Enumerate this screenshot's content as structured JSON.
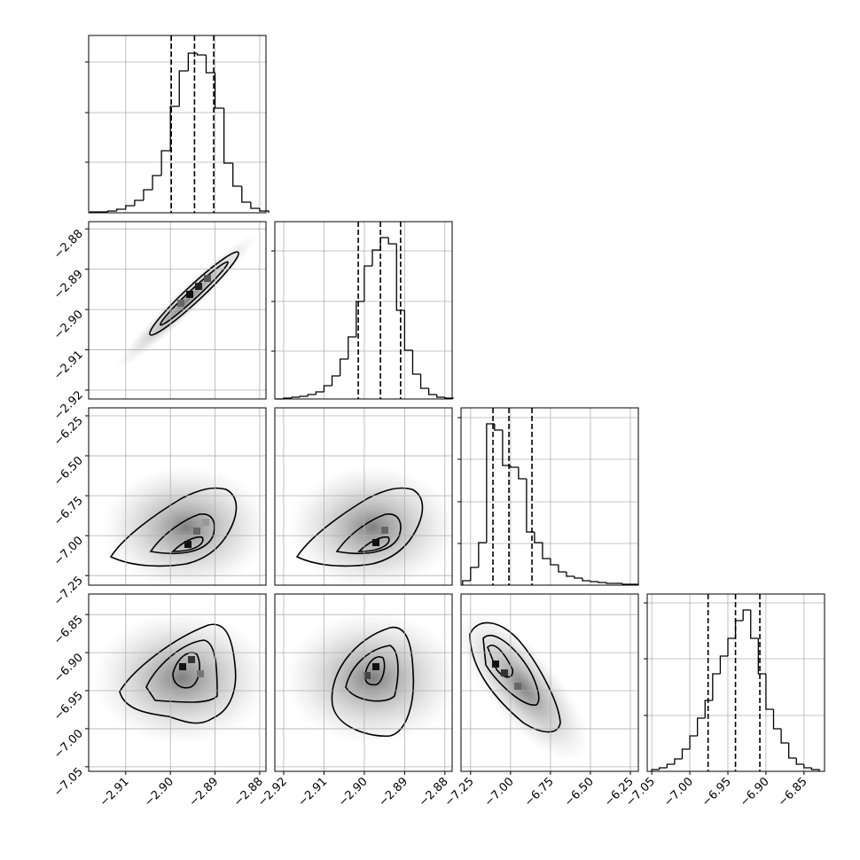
{
  "chart_data": {
    "type": "corner",
    "color": "#000000",
    "grid": true,
    "params": [
      {
        "lim": [
          -2.9183,
          -2.8786
        ],
        "ticks": [
          {
            "value": -2.91,
            "label": "−2.91"
          },
          {
            "value": -2.9,
            "label": "−2.90"
          },
          {
            "value": -2.89,
            "label": "−2.89"
          },
          {
            "value": -2.88,
            "label": "−2.88"
          }
        ],
        "hist": {
          "bins": [
            -2.918,
            -2.916,
            -2.914,
            -2.912,
            -2.91,
            -2.908,
            -2.906,
            -2.904,
            -2.902,
            -2.9,
            -2.898,
            -2.896,
            -2.894,
            -2.892,
            -2.89,
            -2.888,
            -2.886,
            -2.884,
            -2.882,
            -2.88,
            -2.878
          ],
          "counts": [
            1,
            1,
            2,
            4,
            8,
            14,
            26,
            42,
            70,
            120,
            160,
            180,
            178,
            158,
            118,
            56,
            30,
            12,
            5,
            2
          ],
          "ylim": [
            0,
            200
          ],
          "yticks": [
            57,
            113,
            170
          ]
        },
        "quantiles": [
          -2.8998,
          -2.8946,
          -2.8903
        ]
      },
      {
        "lim": [
          -2.9222,
          -2.8782
        ],
        "ticks": [
          {
            "value": -2.92,
            "label": "−2.92"
          },
          {
            "value": -2.91,
            "label": "−2.91"
          },
          {
            "value": -2.9,
            "label": "−2.90"
          },
          {
            "value": -2.89,
            "label": "−2.89"
          },
          {
            "value": -2.88,
            "label": "−2.88"
          }
        ],
        "hist": {
          "bins": [
            -2.922,
            -2.92,
            -2.918,
            -2.916,
            -2.914,
            -2.912,
            -2.91,
            -2.908,
            -2.906,
            -2.904,
            -2.902,
            -2.9,
            -2.898,
            -2.896,
            -2.894,
            -2.892,
            -2.89,
            -2.888,
            -2.886,
            -2.884,
            -2.882,
            -2.88,
            -2.878
          ],
          "counts": [
            0,
            1,
            2,
            3,
            5,
            8,
            15,
            26,
            45,
            70,
            110,
            150,
            168,
            182,
            175,
            100,
            55,
            28,
            12,
            5,
            2,
            1
          ],
          "ylim": [
            0,
            200
          ],
          "yticks": [
            54,
            110,
            167
          ]
        },
        "quantiles": [
          -2.9015,
          -2.896,
          -2.891
        ]
      },
      {
        "lim": [
          -7.31,
          -6.2
        ],
        "ticks": [
          {
            "value": -7.25,
            "label": "−7.25"
          },
          {
            "value": -7.0,
            "label": "−7.00"
          },
          {
            "value": -6.75,
            "label": "−6.75"
          },
          {
            "value": -6.5,
            "label": "−6.50"
          },
          {
            "value": -6.25,
            "label": "−6.25"
          }
        ],
        "hist": {
          "bins": [
            -7.3,
            -7.25,
            -7.2,
            -7.15,
            -7.1,
            -7.05,
            -7.0,
            -6.95,
            -6.9,
            -6.85,
            -6.8,
            -6.75,
            -6.7,
            -6.65,
            -6.6,
            -6.55,
            -6.5,
            -6.45,
            -6.4,
            -6.35,
            -6.3,
            -6.25,
            -6.2
          ],
          "counts": [
            5,
            20,
            48,
            182,
            175,
            135,
            133,
            120,
            60,
            48,
            30,
            23,
            15,
            10,
            8,
            5,
            4,
            3,
            2,
            2,
            1,
            1
          ],
          "ylim": [
            0,
            200
          ],
          "yticks": [
            47,
            94,
            142,
            189
          ]
        },
        "quantiles": [
          -7.11,
          -7.01,
          -6.866
        ]
      },
      {
        "lim": [
          -7.056,
          -6.823
        ],
        "ticks": [
          {
            "value": -7.05,
            "label": "−7.05"
          },
          {
            "value": -7.0,
            "label": "−7.00"
          },
          {
            "value": -6.95,
            "label": "−6.95"
          },
          {
            "value": -6.9,
            "label": "−6.90"
          },
          {
            "value": -6.85,
            "label": "−6.85"
          }
        ],
        "hist": {
          "bins": [
            -7.05,
            -7.04,
            -7.03,
            -7.02,
            -7.01,
            -7.0,
            -6.99,
            -6.98,
            -6.97,
            -6.96,
            -6.95,
            -6.94,
            -6.93,
            -6.92,
            -6.91,
            -6.9,
            -6.89,
            -6.88,
            -6.87,
            -6.86,
            -6.85,
            -6.84,
            -6.83
          ],
          "counts": [
            2,
            4,
            8,
            14,
            25,
            40,
            60,
            80,
            110,
            130,
            150,
            170,
            182,
            150,
            110,
            70,
            48,
            32,
            15,
            8,
            4,
            2
          ],
          "ylim": [
            0,
            200
          ],
          "yticks": [
            63,
            127,
            190
          ]
        },
        "quantiles": [
          -6.976,
          -6.94,
          -6.908
        ]
      }
    ]
  }
}
